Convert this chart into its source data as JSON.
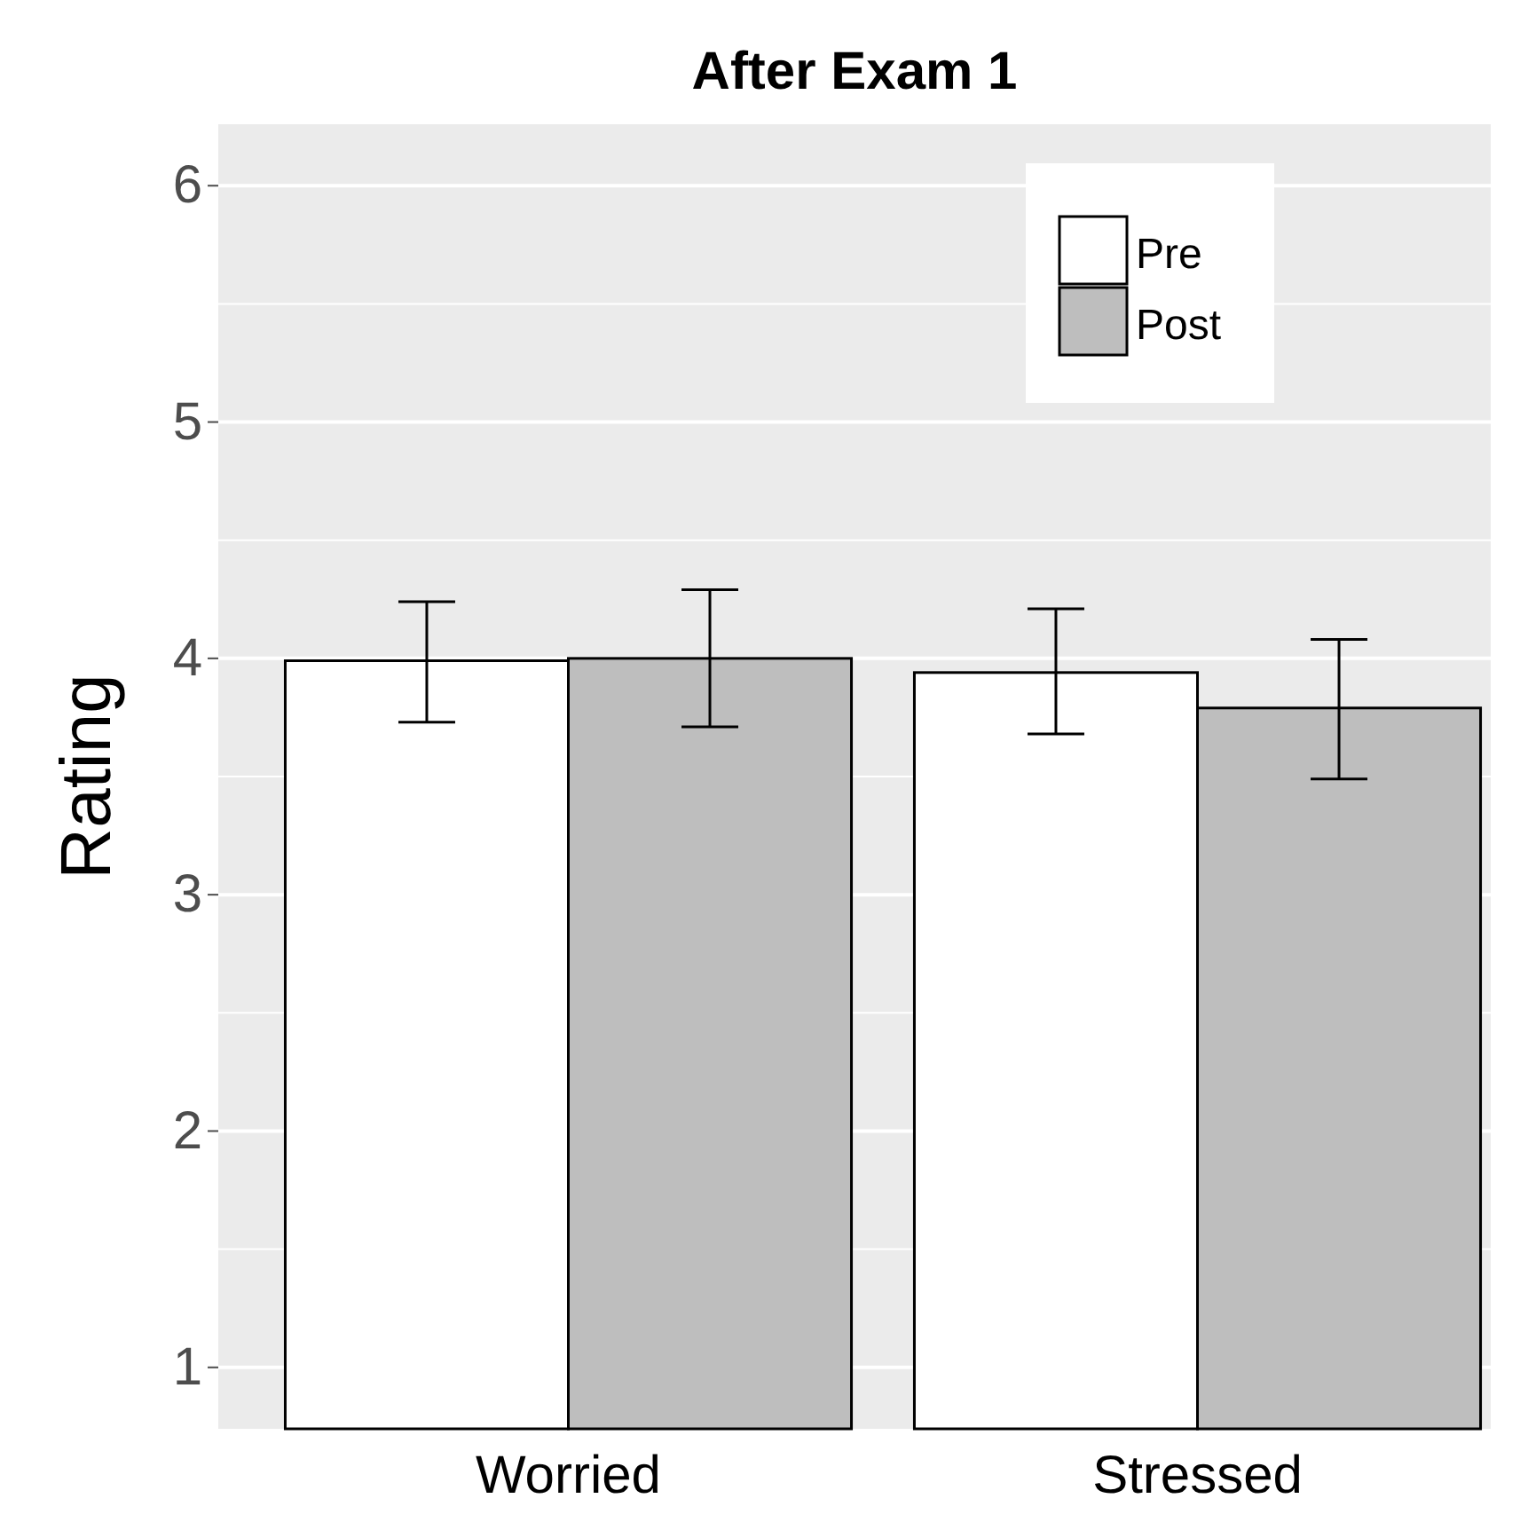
{
  "chart_data": {
    "type": "bar",
    "title": "After Exam 1",
    "ylabel": "Rating",
    "categories": [
      "Worried",
      "Stressed"
    ],
    "series": [
      {
        "name": "Pre",
        "color": "#ffffff",
        "values": [
          3.99,
          3.94
        ],
        "errors": [
          [
            3.73,
            4.24
          ],
          [
            3.68,
            4.21
          ]
        ]
      },
      {
        "name": "Post",
        "color": "#bebebe",
        "values": [
          4.0,
          3.79
        ],
        "errors": [
          [
            3.71,
            4.29
          ],
          [
            3.49,
            4.08
          ]
        ]
      }
    ],
    "ylim": [
      0.74,
      6.26
    ],
    "yticks": [
      1,
      2,
      3,
      4,
      5,
      6
    ],
    "grid": true,
    "legend": "top right"
  }
}
